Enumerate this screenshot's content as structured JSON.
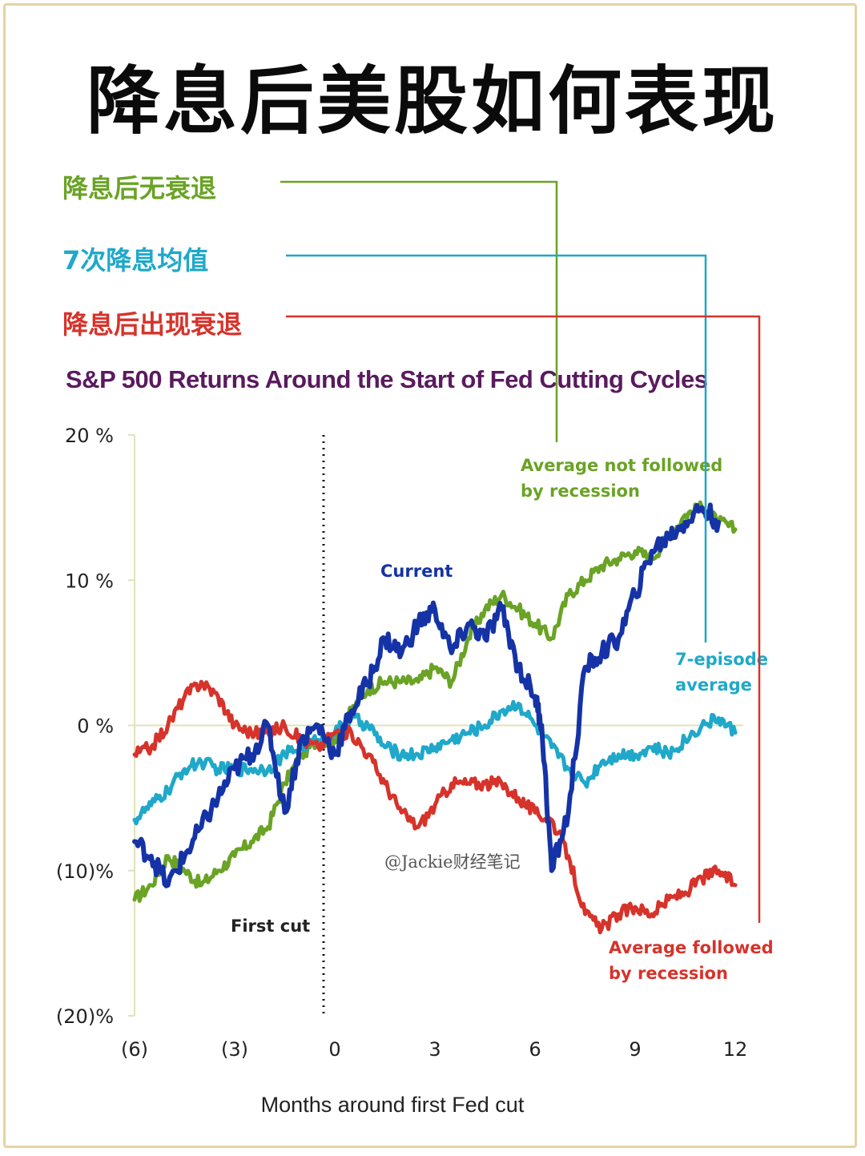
{
  "headline": "降息后美股如何表现",
  "legend_cn": {
    "no_recession": "降息后无衰退",
    "average": "7次降息均值",
    "recession": "降息后出现衰退"
  },
  "watermark": "@Jackie财经笔记",
  "colors": {
    "no_recession": "#6aa325",
    "average": "#1fa8c9",
    "recession": "#d6332b",
    "current": "#1533a6",
    "title": "#5a1a5e"
  },
  "chart_data": {
    "type": "line",
    "title": "S&P 500 Returns Around the Start of Fed Cutting Cycles",
    "xlabel": "Months around first Fed cut",
    "ylabel": "",
    "xlim": [
      -6,
      12
    ],
    "ylim": [
      -20,
      20
    ],
    "x_ticks": [
      -6,
      -3,
      0,
      3,
      6,
      9,
      12
    ],
    "x_tick_labels": [
      "(6)",
      "(3)",
      "0",
      "3",
      "6",
      "9",
      "12"
    ],
    "y_ticks": [
      20,
      10,
      0,
      -10,
      -20
    ],
    "y_tick_labels": [
      "20 %",
      "10 %",
      "0 %",
      "(10)%",
      "(20)%"
    ],
    "vertical_marker": {
      "x": 0,
      "label": "First cut",
      "style": "dotted"
    },
    "annotations": {
      "no_recession": [
        "Average not followed",
        "by recession"
      ],
      "current": [
        "Current"
      ],
      "average": [
        "7-episode",
        "average"
      ],
      "recession": [
        "Average followed",
        "by recession"
      ]
    },
    "series": [
      {
        "name": "Average not followed by recession",
        "x": [
          -6,
          -5.5,
          -5,
          -4.5,
          -4,
          -3.5,
          -3,
          -2.5,
          -2,
          -1.5,
          -1,
          -0.5,
          0,
          0.5,
          1,
          1.5,
          2,
          2.5,
          3,
          3.5,
          4,
          4.5,
          5,
          5.5,
          6,
          6.5,
          7,
          7.5,
          8,
          8.5,
          9,
          9.5,
          10,
          10.5,
          11,
          11.5,
          12
        ],
        "y": [
          -12,
          -11,
          -9,
          -10,
          -11,
          -10,
          -9,
          -8,
          -7,
          -4,
          -2,
          -1,
          -1,
          1,
          2.5,
          3,
          3,
          3,
          4,
          3,
          6,
          8,
          9,
          8,
          7,
          6,
          9,
          10,
          11,
          11.5,
          12,
          11.5,
          13,
          14.5,
          15,
          14,
          13.5
        ]
      },
      {
        "name": "7-episode average",
        "x": [
          -6,
          -5.5,
          -5,
          -4.5,
          -4,
          -3.5,
          -3,
          -2.5,
          -2,
          -1.5,
          -1,
          -0.5,
          0,
          0.5,
          1,
          1.5,
          2,
          2.5,
          3,
          3.5,
          4,
          4.5,
          5,
          5.5,
          6,
          6.5,
          7,
          7.5,
          8,
          8.5,
          9,
          9.5,
          10,
          10.5,
          11,
          11.5,
          12
        ],
        "y": [
          -6.5,
          -5.5,
          -4.5,
          -3,
          -2.5,
          -3,
          -3,
          -3,
          -3,
          -2,
          -1.5,
          -1,
          -0.5,
          0.5,
          0,
          -1.5,
          -2,
          -2,
          -1.5,
          -1,
          -0.5,
          0,
          1,
          1.5,
          0,
          -1.5,
          -3,
          -4,
          -2.5,
          -2,
          -2,
          -1.5,
          -2,
          -1,
          0,
          0.5,
          -0.5
        ]
      },
      {
        "name": "Average followed by recession",
        "x": [
          -6,
          -5.5,
          -5,
          -4.5,
          -4,
          -3.5,
          -3,
          -2.5,
          -2,
          -1.5,
          -1,
          -0.5,
          0,
          0.5,
          1,
          1.5,
          2,
          2.5,
          3,
          3.5,
          4,
          4.5,
          5,
          5.5,
          6,
          6.5,
          7,
          7.5,
          8,
          8.5,
          9,
          9.5,
          10,
          10.5,
          11,
          11.5,
          12
        ],
        "y": [
          -2,
          -1.5,
          0,
          2,
          3,
          2,
          0,
          -0.5,
          -0.5,
          0,
          -1,
          -1.5,
          -0.5,
          -0.5,
          -2,
          -4,
          -6,
          -7,
          -5.5,
          -4,
          -4,
          -4,
          -4,
          -5,
          -6,
          -6.5,
          -9,
          -13,
          -14,
          -13,
          -12.5,
          -13,
          -12,
          -11.5,
          -10.5,
          -10,
          -11
        ]
      },
      {
        "name": "Current",
        "x": [
          -6,
          -5.5,
          -5,
          -4.5,
          -4,
          -3.5,
          -3,
          -2.5,
          -2,
          -1.5,
          -1,
          -0.5,
          0,
          0.5,
          1,
          1.5,
          2,
          2.5,
          3,
          3.5,
          4,
          4.5,
          5,
          5.5,
          6,
          6.2,
          6.5,
          7,
          7.5,
          8,
          8.5,
          9,
          9.5,
          10,
          10.5,
          11,
          11.5
        ],
        "y": [
          -8,
          -9,
          -11,
          -9,
          -7,
          -5,
          -3,
          -2,
          0,
          -6,
          -1,
          0,
          -2,
          1,
          3,
          6,
          5,
          7,
          8,
          5,
          7,
          6,
          8,
          4,
          2,
          0,
          -10,
          -6,
          4,
          5,
          6,
          9,
          12,
          13,
          14,
          15,
          14
        ]
      }
    ]
  }
}
